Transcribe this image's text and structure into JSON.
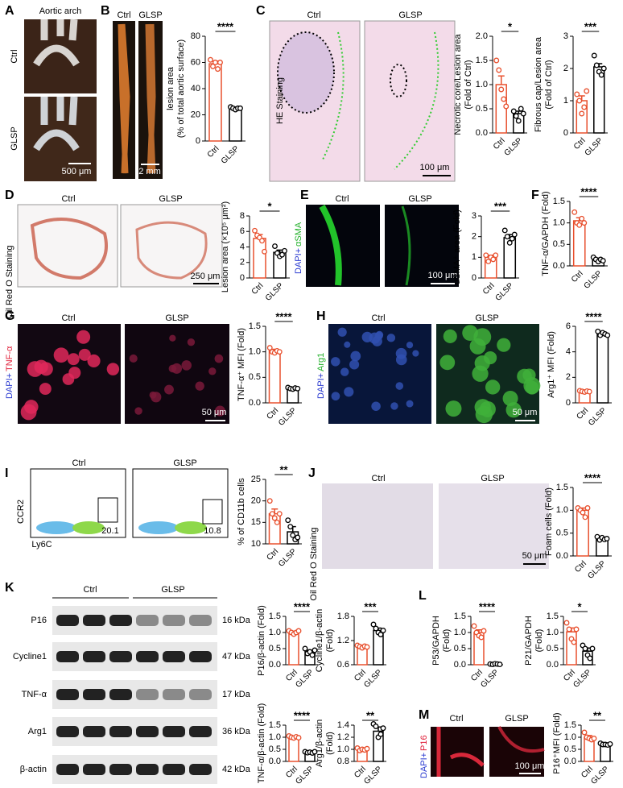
{
  "chart_data": [
    {
      "type": "bar",
      "ylabel": [
        "lesion area",
        "(% of total aortic surface)"
      ],
      "categories": [
        "Ctrl",
        "GLSP"
      ],
      "values": [
        59,
        25
      ],
      "errors": [
        2,
        1
      ],
      "points": [
        [
          62,
          57,
          60,
          55,
          60
        ],
        [
          26,
          25,
          24,
          25,
          25
        ]
      ],
      "colors": [
        "#e8502e",
        "#000000"
      ],
      "ylim": [
        0,
        80
      ],
      "yticks": [
        0,
        20,
        40,
        60,
        80
      ],
      "significance": "****"
    },
    {
      "type": "bar",
      "ylabel": [
        "Necrotic core/Lesion area",
        "(Fold of Ctrl)"
      ],
      "categories": [
        "Ctrl",
        "GLSP"
      ],
      "values": [
        1.0,
        0.4
      ],
      "errors": [
        0.18,
        0.05
      ],
      "points": [
        [
          1.5,
          1.3,
          0.9,
          0.7,
          0.55
        ],
        [
          0.45,
          0.35,
          0.25,
          0.5,
          0.4
        ]
      ],
      "colors": [
        "#e8502e",
        "#000000"
      ],
      "ylim": [
        0,
        2
      ],
      "yticks": [
        {
          "value": 0,
          "label": "0.0"
        },
        0.5,
        {
          "value": 1,
          "label": "1.0"
        },
        1.5,
        {
          "value": 2,
          "label": "2.0"
        }
      ],
      "significance": "*"
    },
    {
      "type": "bar",
      "ylabel": [
        "Fibrous cap/Lesion area",
        "(Fold of Ctrl)"
      ],
      "categories": [
        "Ctrl",
        "GLSP"
      ],
      "values": [
        1.0,
        2.05
      ],
      "errors": [
        0.15,
        0.1
      ],
      "points": [
        [
          1.2,
          1.0,
          0.6,
          0.8,
          1.3
        ],
        [
          2.4,
          2.1,
          1.9,
          1.8,
          2.0
        ]
      ],
      "colors": [
        "#e8502e",
        "#000000"
      ],
      "ylim": [
        0,
        3
      ],
      "yticks": [
        0,
        1,
        2,
        3
      ],
      "significance": "***"
    },
    {
      "type": "bar",
      "ylabel": [
        "Lesion area (×10⁵ μm²)"
      ],
      "categories": [
        "Ctrl",
        "GLSP"
      ],
      "values": [
        5.1,
        3.3
      ],
      "errors": [
        0.5,
        0.3
      ],
      "points": [
        [
          6.1,
          5.5,
          5.2,
          4.8,
          3.4
        ],
        [
          4.1,
          3.2,
          2.8,
          3.0,
          3.5
        ]
      ],
      "colors": [
        "#e8502e",
        "#000000"
      ],
      "ylim": [
        0,
        8
      ],
      "yticks": [
        0,
        2,
        4,
        6,
        8
      ],
      "significance": "*"
    },
    {
      "type": "bar",
      "ylabel": [
        "αSMA⁺ area (Fold)"
      ],
      "categories": [
        "Ctrl",
        "GLSP"
      ],
      "values": [
        1.0,
        1.95
      ],
      "errors": [
        0.1,
        0.15
      ],
      "points": [
        [
          1.1,
          0.8,
          1.0,
          0.9,
          1.1
        ],
        [
          2.3,
          2.0,
          1.7,
          1.9,
          2.1
        ]
      ],
      "colors": [
        "#e8502e",
        "#000000"
      ],
      "ylim": [
        0,
        3
      ],
      "yticks": [
        0,
        1,
        2,
        3
      ],
      "significance": "***"
    },
    {
      "type": "bar",
      "ylabel": [
        "TNF-α/GAPDH (Fold)"
      ],
      "categories": [
        "Ctrl",
        "GLSP"
      ],
      "values": [
        1.05,
        0.15
      ],
      "errors": [
        0.07,
        0.03
      ],
      "points": [
        [
          1.25,
          1.0,
          0.95,
          1.1,
          1.0
        ],
        [
          0.2,
          0.15,
          0.1,
          0.15,
          0.12
        ]
      ],
      "colors": [
        "#e8502e",
        "#000000"
      ],
      "ylim": [
        0,
        1.5
      ],
      "yticks": [
        {
          "value": 0,
          "label": "0.0"
        },
        0.5,
        {
          "value": 1,
          "label": "1.0"
        },
        1.5
      ],
      "significance": "****"
    },
    {
      "type": "bar",
      "ylabel": [
        "TNF-α⁺ MFI (Fold)"
      ],
      "categories": [
        "Ctrl",
        "GLSP"
      ],
      "values": [
        1.02,
        0.28
      ],
      "errors": [
        0.03,
        0.01
      ],
      "points": [
        [
          1.08,
          1.0,
          0.98,
          1.02,
          1.0
        ],
        [
          0.3,
          0.28,
          0.27,
          0.29,
          0.28
        ]
      ],
      "colors": [
        "#e8502e",
        "#000000"
      ],
      "ylim": [
        0,
        1.5
      ],
      "yticks": [
        {
          "value": 0,
          "label": "0.0"
        },
        0.5,
        {
          "value": 1,
          "label": "1.0"
        },
        1.5
      ],
      "significance": "****"
    },
    {
      "type": "bar",
      "ylabel": [
        "Arg1⁺ MFI (Fold)"
      ],
      "categories": [
        "Ctrl",
        "GLSP"
      ],
      "values": [
        0.9,
        5.4
      ],
      "errors": [
        0.05,
        0.1
      ],
      "points": [
        [
          0.95,
          0.9,
          0.85,
          0.92,
          0.88
        ],
        [
          5.6,
          5.3,
          5.5,
          5.4,
          5.3
        ]
      ],
      "colors": [
        "#e8502e",
        "#000000"
      ],
      "ylim": [
        0,
        6
      ],
      "yticks": [
        0,
        2,
        4,
        6
      ],
      "significance": "****"
    },
    {
      "type": "bar",
      "ylabel": [
        "% of CD11b cells"
      ],
      "categories": [
        "Ctrl",
        "GLSP"
      ],
      "values": [
        17,
        12.8
      ],
      "errors": [
        1.1,
        1.2
      ],
      "points": [
        [
          20,
          17,
          16,
          15,
          17
        ],
        [
          15.5,
          14,
          12,
          11,
          11.5
        ]
      ],
      "colors": [
        "#e8502e",
        "#000000"
      ],
      "ylim": [
        10,
        25
      ],
      "yticks": [
        10,
        15,
        20,
        25
      ],
      "significance": "**"
    },
    {
      "type": "bar",
      "ylabel": [
        "Foam cells (Fold)"
      ],
      "categories": [
        "Ctrl",
        "GLSP"
      ],
      "values": [
        1.0,
        0.38
      ],
      "errors": [
        0.05,
        0.03
      ],
      "points": [
        [
          1.05,
          1.0,
          0.95,
          0.85,
          1.05
        ],
        [
          0.42,
          0.35,
          0.4,
          0.36,
          0.38
        ]
      ],
      "colors": [
        "#e8502e",
        "#000000"
      ],
      "ylim": [
        0,
        1.5
      ],
      "yticks": [
        {
          "value": 0,
          "label": "0.0"
        },
        0.5,
        {
          "value": 1,
          "label": "1.0"
        },
        1.5
      ],
      "significance": "****"
    },
    {
      "type": "bar",
      "ylabel": [
        "P16/β-actin (Fold)"
      ],
      "categories": [
        "Ctrl",
        "GLSP"
      ],
      "values": [
        1.0,
        0.4
      ],
      "errors": [
        0.04,
        0.05
      ],
      "points": [
        [
          1.05,
          1.0,
          0.95,
          1.0,
          1.05
        ],
        [
          0.5,
          0.35,
          0.4,
          0.3,
          0.45
        ]
      ],
      "colors": [
        "#e8502e",
        "#000000"
      ],
      "ylim": [
        0,
        1.5
      ],
      "yticks": [
        {
          "value": 0,
          "label": "0.0"
        },
        0.5,
        {
          "value": 1,
          "label": "1.0"
        },
        1.5
      ],
      "significance": "****"
    },
    {
      "type": "bar",
      "ylabel": [
        "Cycline1/β-actin",
        "(Fold)"
      ],
      "categories": [
        "Ctrl",
        "GLSP"
      ],
      "values": [
        1.05,
        1.45
      ],
      "errors": [
        0.02,
        0.06
      ],
      "points": [
        [
          1.08,
          1.05,
          1.02,
          1.06,
          1.04
        ],
        [
          1.6,
          1.5,
          1.4,
          1.35,
          1.45
        ]
      ],
      "colors": [
        "#e8502e",
        "#000000"
      ],
      "ylim": [
        0.6,
        1.8
      ],
      "yticks": [
        0.6,
        1.2,
        1.8
      ],
      "significance": "***"
    },
    {
      "type": "bar",
      "ylabel": [
        "TNF-α/β-actin (Fold)"
      ],
      "categories": [
        "Ctrl",
        "GLSP"
      ],
      "values": [
        1.0,
        0.38
      ],
      "errors": [
        0.03,
        0.02
      ],
      "points": [
        [
          1.05,
          1.0,
          0.97,
          1.02,
          0.98
        ],
        [
          0.4,
          0.36,
          0.38,
          0.35,
          0.4
        ]
      ],
      "colors": [
        "#e8502e",
        "#000000"
      ],
      "ylim": [
        0,
        1.5
      ],
      "yticks": [
        {
          "value": 0,
          "label": "0.0"
        },
        0.5,
        {
          "value": 1,
          "label": "1.0"
        },
        1.5
      ],
      "significance": "****"
    },
    {
      "type": "bar",
      "ylabel": [
        "Arg1/β-actin",
        "(Fold)"
      ],
      "categories": [
        "Ctrl",
        "GLSP"
      ],
      "values": [
        1.0,
        1.3
      ],
      "errors": [
        0.02,
        0.07
      ],
      "points": [
        [
          1.02,
          0.98,
          1.0,
          0.99,
          1.01
        ],
        [
          1.42,
          1.38,
          1.2,
          1.25,
          1.35
        ]
      ],
      "colors": [
        "#e8502e",
        "#000000"
      ],
      "ylim": [
        0.8,
        1.4
      ],
      "yticks": [
        0.8,
        {
          "value": 1,
          "label": "1.0"
        },
        1.2,
        1.4
      ],
      "significance": "**"
    },
    {
      "type": "bar",
      "ylabel": [
        "P53/GAPDH",
        "(Fold)"
      ],
      "categories": [
        "Ctrl",
        "GLSP"
      ],
      "values": [
        1.0,
        0.02
      ],
      "errors": [
        0.08,
        0.01
      ],
      "points": [
        [
          1.2,
          1.0,
          0.9,
          0.85,
          1.05
        ],
        [
          0.02,
          0.01,
          0.03,
          0.02,
          0.01
        ]
      ],
      "colors": [
        "#e8502e",
        "#000000"
      ],
      "ylim": [
        0,
        1.5
      ],
      "yticks": [
        {
          "value": 0,
          "label": "0.0"
        },
        0.5,
        {
          "value": 1,
          "label": "1.0"
        },
        1.5
      ],
      "significance": "****"
    },
    {
      "type": "bar",
      "ylabel": [
        "P21/GAPDH",
        "(Fold)"
      ],
      "categories": [
        "Ctrl",
        "GLSP"
      ],
      "values": [
        1.02,
        0.42
      ],
      "errors": [
        0.12,
        0.1
      ],
      "points": [
        [
          1.3,
          1.1,
          0.8,
          0.7,
          1.1
        ],
        [
          0.6,
          0.5,
          0.3,
          0.2,
          0.5
        ]
      ],
      "colors": [
        "#e8502e",
        "#000000"
      ],
      "ylim": [
        0,
        1.5
      ],
      "yticks": [
        {
          "value": 0,
          "label": "0.0"
        },
        0.5,
        {
          "value": 1,
          "label": "1.0"
        },
        1.5
      ],
      "significance": "*"
    },
    {
      "type": "bar",
      "ylabel": [
        "P16⁺MFI (Fold)"
      ],
      "categories": [
        "Ctrl",
        "GLSP"
      ],
      "values": [
        1.0,
        0.72
      ],
      "errors": [
        0.07,
        0.02
      ],
      "points": [
        [
          1.2,
          1.0,
          0.95,
          0.9,
          0.95
        ],
        [
          0.75,
          0.7,
          0.7,
          0.68,
          0.72
        ]
      ],
      "colors": [
        "#e8502e",
        "#000000"
      ],
      "ylim": [
        0,
        1.5
      ],
      "yticks": [
        {
          "value": 0,
          "label": "0.0"
        },
        0.5,
        {
          "value": 1,
          "label": "1.0"
        },
        1.5
      ],
      "significance": "**"
    }
  ],
  "texts": [
    "A",
    "Aortic arch",
    "Ctrl",
    "GLSP",
    "500 μm",
    "B",
    "Ctrl",
    "GLSP",
    "2 mm",
    "C",
    "Ctrl",
    "GLSP",
    "HE Staining",
    "100 μm",
    "D",
    "Oil Red O Staining",
    "Ctrl",
    "GLSP",
    "250 μm",
    "E",
    "DAPI+",
    "αSMA",
    "Ctrl",
    "GLSP",
    "100 μm",
    "F",
    "G",
    "DAPI+",
    "TNF-α",
    "Ctrl",
    "GLSP",
    "50 μm",
    "H",
    "DAPI+",
    "Arg1",
    "Ctrl",
    "GLSP",
    "50 μm",
    "I",
    "Ctrl",
    "GLSP",
    "CCR2",
    "Ly6C",
    "20.1",
    "10.8",
    "J",
    "Oil Red O Staining",
    "Ctrl",
    "GLSP",
    "50 μm",
    "K",
    "Ctrl",
    "GLSP",
    "P16",
    "Cycline1",
    "TNF-α",
    "Arg1",
    "β-actin",
    "16 kDa",
    "47 kDa",
    "17 kDa",
    "36 kDa",
    "42 kDa",
    "L",
    "M",
    "DAPI+",
    "P16",
    "Ctrl",
    "GLSP",
    "100 μm"
  ]
}
